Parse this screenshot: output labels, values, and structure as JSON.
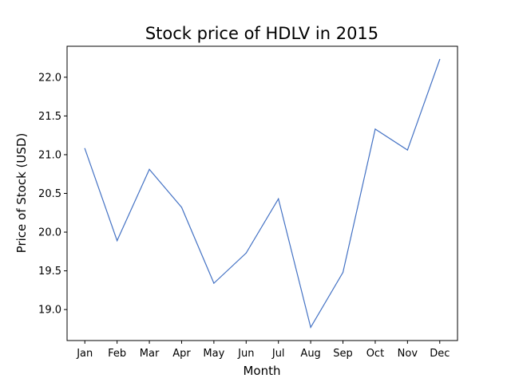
{
  "chart_data": {
    "type": "line",
    "title": "Stock price of HDLV in 2015",
    "xlabel": "Month",
    "ylabel": "Price of Stock (USD)",
    "categories": [
      "Jan",
      "Feb",
      "Mar",
      "Apr",
      "May",
      "Jun",
      "Jul",
      "Aug",
      "Sep",
      "Oct",
      "Nov",
      "Dec"
    ],
    "series": [
      {
        "values": [
          21.08,
          19.89,
          20.81,
          20.32,
          19.34,
          19.73,
          20.43,
          18.77,
          19.48,
          21.33,
          21.06,
          22.23
        ],
        "color": "#4472c4"
      }
    ],
    "ylim": [
      18.6,
      22.4
    ],
    "yticks": [
      19.0,
      19.5,
      20.0,
      20.5,
      21.0,
      21.5,
      22.0
    ],
    "ytick_labels": [
      "19.0",
      "19.5",
      "20.0",
      "20.5",
      "21.0",
      "21.5",
      "22.0"
    ],
    "grid": false,
    "legend": false
  }
}
